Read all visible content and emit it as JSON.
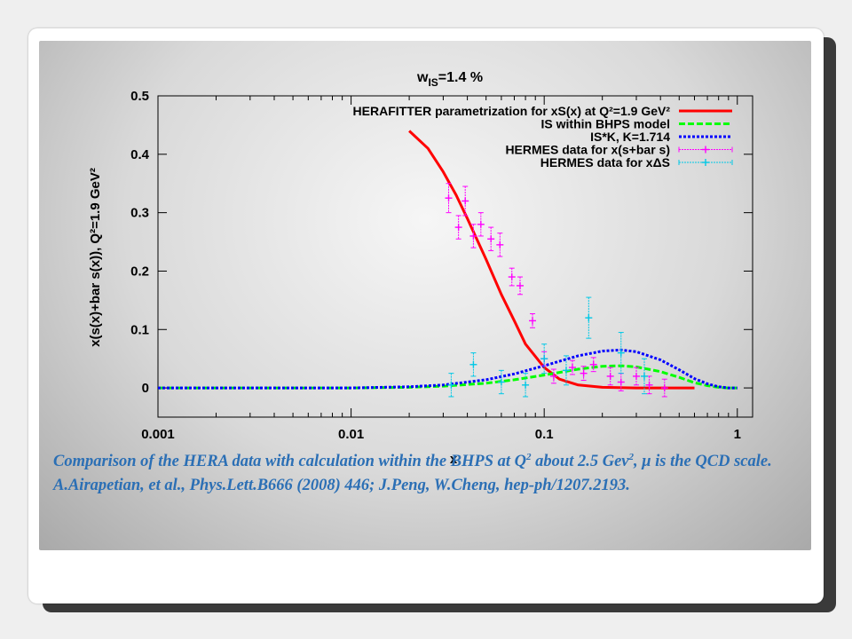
{
  "colors": {
    "herafitter": "#ff0000",
    "bhps": "#00ff00",
    "isk": "#0000ff",
    "hermes_s": "#ff00ff",
    "hermes_delta": "#00c8e6",
    "caption": "#2b6fb5"
  },
  "chart_data": {
    "type": "line",
    "title": "w",
    "title_sub": "IS",
    "title_value": "=1.4 %",
    "xlabel": "x",
    "ylabel": "x(s(x)+bar s(x)), Q²=1.9 GeV²",
    "x_scale": "log",
    "xlim": [
      0.001,
      1.2
    ],
    "ylim": [
      -0.05,
      0.5
    ],
    "x_ticks": [
      0.001,
      0.01,
      0.1,
      1
    ],
    "x_tick_labels": [
      "0.001",
      "0.01",
      "0.1",
      "1"
    ],
    "y_ticks": [
      0,
      0.1,
      0.2,
      0.3,
      0.4,
      0.5
    ],
    "y_tick_labels": [
      "0",
      "0.1",
      "0.2",
      "0.3",
      "0.4",
      "0.5"
    ],
    "grid": false,
    "legend_position": "top-right",
    "series": [
      {
        "name": "HERAFITTER parametrization for xS(x) at Q²=1.9 GeV²",
        "style": "solid",
        "x": [
          0.02,
          0.025,
          0.03,
          0.035,
          0.04,
          0.05,
          0.06,
          0.07,
          0.08,
          0.1,
          0.12,
          0.15,
          0.2,
          0.3,
          0.4,
          0.6
        ],
        "y": [
          0.44,
          0.41,
          0.37,
          0.33,
          0.29,
          0.22,
          0.16,
          0.115,
          0.075,
          0.035,
          0.015,
          0.005,
          0.001,
          0,
          0,
          0
        ]
      },
      {
        "name": "IS within BHPS model",
        "style": "dashed",
        "x": [
          0.001,
          0.01,
          0.02,
          0.03,
          0.05,
          0.07,
          0.1,
          0.15,
          0.2,
          0.25,
          0.3,
          0.4,
          0.5,
          0.6,
          0.7,
          0.8,
          0.9,
          1.0
        ],
        "y": [
          0,
          0,
          0.001,
          0.003,
          0.008,
          0.014,
          0.022,
          0.032,
          0.037,
          0.038,
          0.036,
          0.028,
          0.018,
          0.009,
          0.004,
          0.001,
          0,
          0
        ]
      },
      {
        "name": "IS*K, K=1.714",
        "style": "dotted",
        "x": [
          0.001,
          0.01,
          0.02,
          0.03,
          0.05,
          0.07,
          0.1,
          0.15,
          0.2,
          0.25,
          0.3,
          0.4,
          0.5,
          0.6,
          0.7,
          0.8,
          0.9,
          1.0
        ],
        "y": [
          0,
          0,
          0.002,
          0.005,
          0.014,
          0.024,
          0.038,
          0.055,
          0.063,
          0.065,
          0.062,
          0.048,
          0.031,
          0.016,
          0.007,
          0.002,
          0,
          0
        ]
      }
    ],
    "points": [
      {
        "name": "HERMES data for x(s+bar s)",
        "x": [
          0.032,
          0.036,
          0.039,
          0.043,
          0.047,
          0.053,
          0.059,
          0.068,
          0.075,
          0.087,
          0.1,
          0.112,
          0.14,
          0.16,
          0.18,
          0.22,
          0.25,
          0.3,
          0.35,
          0.42
        ],
        "y": [
          0.325,
          0.275,
          0.32,
          0.26,
          0.28,
          0.255,
          0.245,
          0.19,
          0.175,
          0.115,
          0.05,
          0.02,
          0.035,
          0.025,
          0.04,
          0.02,
          0.01,
          0.02,
          0.005,
          0.0
        ],
        "err": [
          0.025,
          0.02,
          0.025,
          0.02,
          0.02,
          0.02,
          0.02,
          0.015,
          0.015,
          0.012,
          0.012,
          0.012,
          0.012,
          0.012,
          0.012,
          0.015,
          0.015,
          0.015,
          0.015,
          0.015
        ]
      },
      {
        "name": "HERMES data for xΔS",
        "x": [
          0.033,
          0.043,
          0.06,
          0.08,
          0.1,
          0.13,
          0.17,
          0.25,
          0.33
        ],
        "y": [
          0.005,
          0.04,
          0.01,
          0.005,
          0.05,
          0.03,
          0.12,
          0.06,
          0.02
        ],
        "err": [
          0.02,
          0.02,
          0.02,
          0.02,
          0.025,
          0.025,
          0.035,
          0.035,
          0.03
        ]
      }
    ]
  },
  "caption": {
    "text1": "Comparison of the HERA data with  calculation within the BHPS at Q",
    "sup1": "2",
    "text2": " about 2.5 Gev",
    "sup2": "2",
    "text3": ", μ is the QCD scale. A.Airapetian, et al., Phys.Lett.B666 (2008) 446; J.Peng, W.Cheng, hep-ph/1207.2193."
  }
}
